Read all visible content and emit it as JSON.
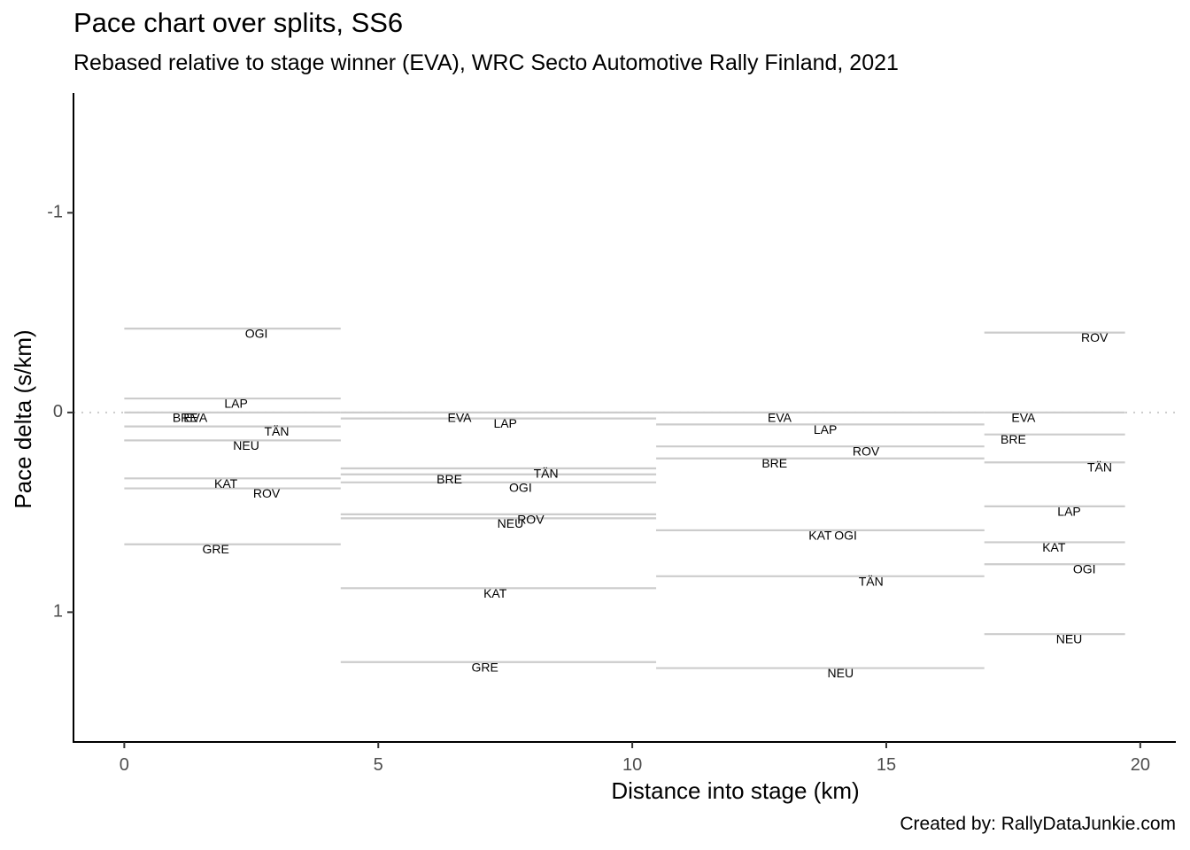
{
  "title": "Pace chart over splits, SS6",
  "subtitle": "Rebased relative to stage winner (EVA), WRC Secto Automotive Rally Finland, 2021",
  "caption": "Created by: RallyDataJunkie.com",
  "colors": {
    "segment": "#cccccc",
    "zero_line": "#cccccc",
    "axis": "#000000",
    "tick_text": "#4d4d4d"
  },
  "chart_data": {
    "type": "line",
    "xlabel": "Distance into stage (km)",
    "ylabel": "Pace delta (s/km)",
    "xlim": [
      -1,
      20.7
    ],
    "ylim": [
      1.65,
      -1.6
    ],
    "y_reversed": true,
    "x_ticks": [
      0,
      5,
      10,
      15,
      20
    ],
    "y_ticks": [
      -1,
      0,
      1
    ],
    "grid": false,
    "zero_reference_line": {
      "y": 0,
      "style": "dotted"
    },
    "splits": [
      {
        "x_start": 0,
        "x_end": 4.26,
        "drivers": [
          {
            "name": "OGI",
            "pace": -0.42
          },
          {
            "name": "LAP",
            "pace": -0.07
          },
          {
            "name": "EVA",
            "pace": 0.0
          },
          {
            "name": "BRE",
            "pace": 0.07
          },
          {
            "name": "TÄN",
            "pace": 0.14
          },
          {
            "name": "NEU",
            "pace": 0.14
          },
          {
            "name": "KAT",
            "pace": 0.33
          },
          {
            "name": "ROV",
            "pace": 0.38
          },
          {
            "name": "GRE",
            "pace": 0.66
          }
        ]
      },
      {
        "x_start": 4.26,
        "x_end": 10.47,
        "drivers": [
          {
            "name": "EVA",
            "pace": 0.0
          },
          {
            "name": "LAP",
            "pace": 0.03
          },
          {
            "name": "TÄN",
            "pace": 0.28
          },
          {
            "name": "BRE",
            "pace": 0.31
          },
          {
            "name": "OGI",
            "pace": 0.35
          },
          {
            "name": "ROV",
            "pace": 0.51
          },
          {
            "name": "NEU",
            "pace": 0.53
          },
          {
            "name": "KAT",
            "pace": 0.88
          },
          {
            "name": "GRE",
            "pace": 1.25
          }
        ]
      },
      {
        "x_start": 10.47,
        "x_end": 16.93,
        "drivers": [
          {
            "name": "EVA",
            "pace": 0.0
          },
          {
            "name": "LAP",
            "pace": 0.06
          },
          {
            "name": "ROV",
            "pace": 0.17
          },
          {
            "name": "BRE",
            "pace": 0.23
          },
          {
            "name": "KAT",
            "pace": 0.59
          },
          {
            "name": "OGI",
            "pace": 0.59
          },
          {
            "name": "TÄN",
            "pace": 0.82
          },
          {
            "name": "NEU",
            "pace": 1.28
          }
        ]
      },
      {
        "x_start": 16.93,
        "x_end": 19.7,
        "drivers": [
          {
            "name": "ROV",
            "pace": -0.4
          },
          {
            "name": "EVA",
            "pace": 0.0
          },
          {
            "name": "BRE",
            "pace": 0.11
          },
          {
            "name": "TÄN",
            "pace": 0.25
          },
          {
            "name": "LAP",
            "pace": 0.47
          },
          {
            "name": "KAT",
            "pace": 0.65
          },
          {
            "name": "OGI",
            "pace": 0.76
          },
          {
            "name": "NEU",
            "pace": 1.11
          }
        ]
      }
    ],
    "labels": [
      {
        "text": "OGI",
        "x": 2.6,
        "y": -0.39
      },
      {
        "text": "LAP",
        "x": 2.2,
        "y": -0.04
      },
      {
        "text": "BRE",
        "x": 1.2,
        "y": 0.03
      },
      {
        "text": "EVA",
        "x": 1.4,
        "y": 0.03
      },
      {
        "text": "TÄN",
        "x": 3.0,
        "y": 0.1
      },
      {
        "text": "NEU",
        "x": 2.4,
        "y": 0.17
      },
      {
        "text": "KAT",
        "x": 2.0,
        "y": 0.36
      },
      {
        "text": "ROV",
        "x": 2.8,
        "y": 0.41
      },
      {
        "text": "GRE",
        "x": 1.8,
        "y": 0.69
      },
      {
        "text": "EVA",
        "x": 6.6,
        "y": 0.03
      },
      {
        "text": "LAP",
        "x": 7.5,
        "y": 0.06
      },
      {
        "text": "TÄN",
        "x": 8.3,
        "y": 0.31
      },
      {
        "text": "BRE",
        "x": 6.4,
        "y": 0.34
      },
      {
        "text": "OGI",
        "x": 7.8,
        "y": 0.38
      },
      {
        "text": "ROV",
        "x": 8.0,
        "y": 0.54
      },
      {
        "text": "NEU",
        "x": 7.6,
        "y": 0.56
      },
      {
        "text": "KAT",
        "x": 7.3,
        "y": 0.91
      },
      {
        "text": "GRE",
        "x": 7.1,
        "y": 1.28
      },
      {
        "text": "EVA",
        "x": 12.9,
        "y": 0.03
      },
      {
        "text": "LAP",
        "x": 13.8,
        "y": 0.09
      },
      {
        "text": "ROV",
        "x": 14.6,
        "y": 0.2
      },
      {
        "text": "BRE",
        "x": 12.8,
        "y": 0.26
      },
      {
        "text": "KAT",
        "x": 13.7,
        "y": 0.62
      },
      {
        "text": "OGI",
        "x": 14.2,
        "y": 0.62
      },
      {
        "text": "TÄN",
        "x": 14.7,
        "y": 0.85
      },
      {
        "text": "NEU",
        "x": 14.1,
        "y": 1.31
      },
      {
        "text": "ROV",
        "x": 19.1,
        "y": -0.37
      },
      {
        "text": "EVA",
        "x": 17.7,
        "y": 0.03
      },
      {
        "text": "BRE",
        "x": 17.5,
        "y": 0.14
      },
      {
        "text": "TÄN",
        "x": 19.2,
        "y": 0.28
      },
      {
        "text": "LAP",
        "x": 18.6,
        "y": 0.5
      },
      {
        "text": "KAT",
        "x": 18.3,
        "y": 0.68
      },
      {
        "text": "OGI",
        "x": 18.9,
        "y": 0.79
      },
      {
        "text": "NEU",
        "x": 18.6,
        "y": 1.14
      }
    ]
  }
}
